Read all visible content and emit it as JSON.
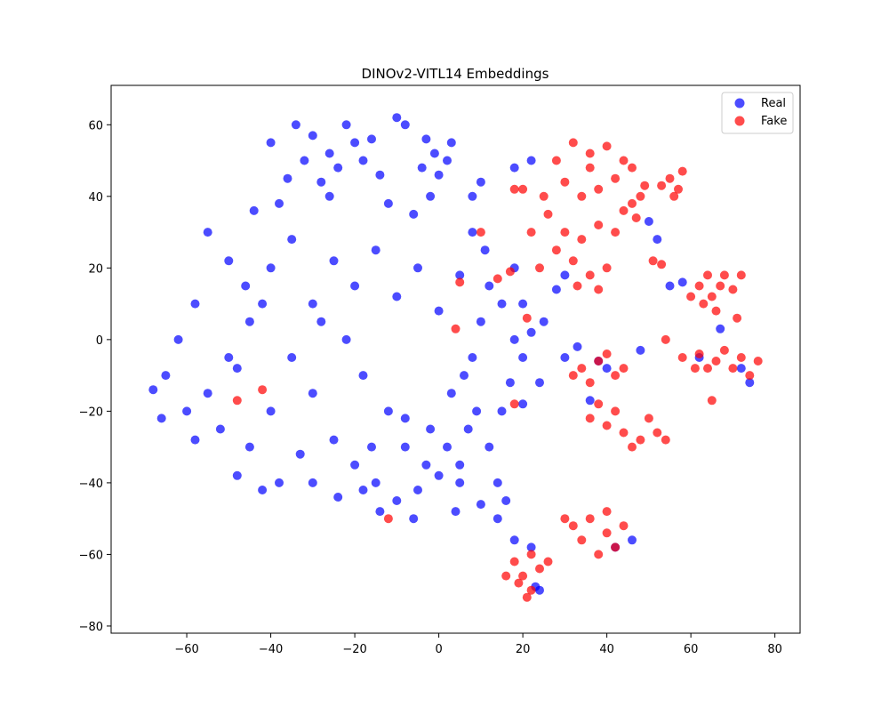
{
  "chart_data": {
    "type": "scatter",
    "title": "DINOv2-VITL14 Embeddings",
    "xlabel": "",
    "ylabel": "",
    "xlim": [
      -78,
      86
    ],
    "ylim": [
      -82,
      71
    ],
    "xticks": [
      -60,
      -40,
      -20,
      0,
      20,
      40,
      60,
      80
    ],
    "yticks": [
      -80,
      -60,
      -40,
      -20,
      0,
      20,
      40,
      60
    ],
    "xtick_labels": [
      "−60",
      "−40",
      "−20",
      "0",
      "20",
      "40",
      "60",
      "80"
    ],
    "ytick_labels": [
      "−80",
      "−60",
      "−40",
      "−20",
      "0",
      "20",
      "40",
      "60"
    ],
    "grid": false,
    "legend_position": "upper right",
    "series": [
      {
        "name": "Real",
        "color": "#0000ff",
        "alpha": 0.7,
        "points": [
          [
            -26,
            52
          ],
          [
            -20,
            55
          ],
          [
            -30,
            57
          ],
          [
            -24,
            48
          ],
          [
            -18,
            50
          ],
          [
            -28,
            44
          ],
          [
            -22,
            60
          ],
          [
            -16,
            56
          ],
          [
            -14,
            46
          ],
          [
            -32,
            50
          ],
          [
            -1,
            52
          ],
          [
            2,
            50
          ],
          [
            -4,
            48
          ],
          [
            3,
            55
          ],
          [
            0,
            46
          ],
          [
            -3,
            56
          ],
          [
            -40,
            20
          ],
          [
            -35,
            28
          ],
          [
            -30,
            10
          ],
          [
            -25,
            22
          ],
          [
            -20,
            15
          ],
          [
            -15,
            25
          ],
          [
            -10,
            12
          ],
          [
            -5,
            20
          ],
          [
            0,
            8
          ],
          [
            5,
            18
          ],
          [
            -45,
            5
          ],
          [
            -50,
            -5
          ],
          [
            -55,
            -15
          ],
          [
            -60,
            -20
          ],
          [
            -65,
            -10
          ],
          [
            -68,
            -14
          ],
          [
            -58,
            -28
          ],
          [
            -52,
            -25
          ],
          [
            -45,
            -30
          ],
          [
            -40,
            -20
          ],
          [
            -35,
            -5
          ],
          [
            -30,
            -15
          ],
          [
            -25,
            -28
          ],
          [
            -20,
            -35
          ],
          [
            -15,
            -40
          ],
          [
            -10,
            -45
          ],
          [
            -5,
            -42
          ],
          [
            0,
            -38
          ],
          [
            5,
            -35
          ],
          [
            -8,
            -30
          ],
          [
            -12,
            -20
          ],
          [
            -18,
            -10
          ],
          [
            -22,
            0
          ],
          [
            -28,
            5
          ],
          [
            -33,
            -32
          ],
          [
            -38,
            -40
          ],
          [
            -42,
            -42
          ],
          [
            -48,
            -38
          ],
          [
            -2,
            -25
          ],
          [
            3,
            -15
          ],
          [
            8,
            -5
          ],
          [
            10,
            5
          ],
          [
            12,
            15
          ],
          [
            15,
            10
          ],
          [
            18,
            0
          ],
          [
            20,
            -5
          ],
          [
            22,
            2
          ],
          [
            -6,
            35
          ],
          [
            -12,
            38
          ],
          [
            -2,
            40
          ],
          [
            -50,
            22
          ],
          [
            -55,
            30
          ],
          [
            -58,
            10
          ],
          [
            -62,
            0
          ],
          [
            -66,
            -22
          ],
          [
            -44,
            36
          ],
          [
            -38,
            38
          ],
          [
            -26,
            40
          ],
          [
            -42,
            10
          ],
          [
            -48,
            -8
          ],
          [
            6,
            -10
          ],
          [
            9,
            -20
          ],
          [
            12,
            -30
          ],
          [
            14,
            -40
          ],
          [
            16,
            -45
          ],
          [
            4,
            -48
          ],
          [
            -6,
            -50
          ],
          [
            -14,
            -48
          ],
          [
            8,
            30
          ],
          [
            11,
            25
          ],
          [
            -30,
            -40
          ],
          [
            -24,
            -44
          ],
          [
            -18,
            -42
          ],
          [
            2,
            -30
          ],
          [
            7,
            -25
          ],
          [
            15,
            -20
          ],
          [
            17,
            -12
          ],
          [
            20,
            10
          ],
          [
            25,
            5
          ],
          [
            18,
            20
          ],
          [
            18,
            48
          ],
          [
            22,
            50
          ],
          [
            10,
            44
          ],
          [
            8,
            40
          ],
          [
            -36,
            45
          ],
          [
            -40,
            55
          ],
          [
            -34,
            60
          ],
          [
            -10,
            62
          ],
          [
            -8,
            60
          ],
          [
            -46,
            15
          ],
          [
            30,
            18
          ],
          [
            28,
            14
          ],
          [
            33,
            -2
          ],
          [
            30,
            -5
          ],
          [
            24,
            -12
          ],
          [
            20,
            -18
          ],
          [
            40,
            -8
          ],
          [
            38,
            -6
          ],
          [
            36,
            -17
          ],
          [
            48,
            -3
          ],
          [
            50,
            33
          ],
          [
            52,
            28
          ],
          [
            55,
            15
          ],
          [
            58,
            16
          ],
          [
            62,
            -5
          ],
          [
            67,
            3
          ],
          [
            72,
            -8
          ],
          [
            74,
            -12
          ],
          [
            46,
            -56
          ],
          [
            42,
            -58
          ],
          [
            18,
            -56
          ],
          [
            22,
            -58
          ],
          [
            24,
            -70
          ],
          [
            23,
            -69
          ],
          [
            14,
            -50
          ],
          [
            10,
            -46
          ],
          [
            5,
            -40
          ],
          [
            -3,
            -35
          ],
          [
            -8,
            -22
          ],
          [
            -16,
            -30
          ]
        ]
      },
      {
        "name": "Fake",
        "color": "#ff0000",
        "alpha": 0.7,
        "points": [
          [
            28,
            50
          ],
          [
            32,
            55
          ],
          [
            36,
            52
          ],
          [
            40,
            54
          ],
          [
            44,
            50
          ],
          [
            30,
            44
          ],
          [
            34,
            40
          ],
          [
            38,
            42
          ],
          [
            42,
            45
          ],
          [
            46,
            38
          ],
          [
            26,
            35
          ],
          [
            30,
            30
          ],
          [
            34,
            28
          ],
          [
            38,
            32
          ],
          [
            42,
            30
          ],
          [
            25,
            40
          ],
          [
            28,
            25
          ],
          [
            32,
            22
          ],
          [
            36,
            18
          ],
          [
            40,
            20
          ],
          [
            24,
            20
          ],
          [
            33,
            15
          ],
          [
            38,
            14
          ],
          [
            44,
            36
          ],
          [
            46,
            48
          ],
          [
            22,
            30
          ],
          [
            20,
            42
          ],
          [
            18,
            42
          ],
          [
            48,
            40
          ],
          [
            36,
            48
          ],
          [
            55,
            45
          ],
          [
            57,
            42
          ],
          [
            58,
            47
          ],
          [
            53,
            43
          ],
          [
            56,
            40
          ],
          [
            62,
            15
          ],
          [
            65,
            12
          ],
          [
            68,
            18
          ],
          [
            70,
            14
          ],
          [
            63,
            10
          ],
          [
            66,
            8
          ],
          [
            72,
            18
          ],
          [
            60,
            12
          ],
          [
            67,
            15
          ],
          [
            64,
            18
          ],
          [
            58,
            -5
          ],
          [
            62,
            -4
          ],
          [
            66,
            -6
          ],
          [
            70,
            -8
          ],
          [
            74,
            -10
          ],
          [
            64,
            -8
          ],
          [
            68,
            -3
          ],
          [
            72,
            -5
          ],
          [
            76,
            -6
          ],
          [
            61,
            -8
          ],
          [
            34,
            -8
          ],
          [
            38,
            -6
          ],
          [
            42,
            -10
          ],
          [
            36,
            -12
          ],
          [
            40,
            -4
          ],
          [
            44,
            -8
          ],
          [
            32,
            -10
          ],
          [
            36,
            -22
          ],
          [
            40,
            -24
          ],
          [
            44,
            -26
          ],
          [
            48,
            -28
          ],
          [
            52,
            -26
          ],
          [
            42,
            -20
          ],
          [
            46,
            -30
          ],
          [
            50,
            -22
          ],
          [
            54,
            -28
          ],
          [
            38,
            -18
          ],
          [
            32,
            -52
          ],
          [
            36,
            -50
          ],
          [
            40,
            -54
          ],
          [
            42,
            -58
          ],
          [
            38,
            -60
          ],
          [
            34,
            -56
          ],
          [
            30,
            -50
          ],
          [
            44,
            -52
          ],
          [
            40,
            -48
          ],
          [
            18,
            -62
          ],
          [
            20,
            -66
          ],
          [
            22,
            -70
          ],
          [
            24,
            -64
          ],
          [
            19,
            -68
          ],
          [
            21,
            -72
          ],
          [
            26,
            -62
          ],
          [
            16,
            -66
          ],
          [
            22,
            -60
          ],
          [
            -48,
            -17
          ],
          [
            -42,
            -14
          ],
          [
            4,
            3
          ],
          [
            5,
            16
          ],
          [
            10,
            30
          ],
          [
            14,
            17
          ],
          [
            17,
            19
          ],
          [
            21,
            6
          ],
          [
            18,
            -18
          ],
          [
            -12,
            -50
          ],
          [
            65,
            -17
          ],
          [
            71,
            6
          ],
          [
            54,
            0
          ],
          [
            51,
            22
          ],
          [
            53,
            21
          ],
          [
            49,
            43
          ],
          [
            47,
            34
          ]
        ]
      }
    ]
  }
}
